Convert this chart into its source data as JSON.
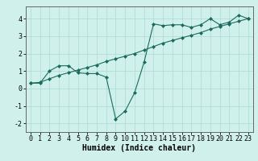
{
  "line1_x": [
    0,
    1,
    2,
    3,
    4,
    5,
    6,
    7,
    8,
    9,
    10,
    11,
    12,
    13,
    14,
    15,
    16,
    17,
    18,
    19,
    20,
    21,
    22,
    23
  ],
  "line1_y": [
    0.3,
    0.35,
    0.55,
    0.75,
    0.9,
    1.05,
    1.2,
    1.35,
    1.55,
    1.7,
    1.85,
    2.0,
    2.2,
    2.4,
    2.6,
    2.75,
    2.9,
    3.05,
    3.2,
    3.4,
    3.55,
    3.7,
    3.85,
    4.0
  ],
  "line2_x": [
    0,
    1,
    2,
    3,
    4,
    5,
    6,
    7,
    8,
    9,
    10,
    11,
    12,
    13,
    14,
    15,
    16,
    17,
    18,
    19,
    20,
    21,
    22,
    23
  ],
  "line2_y": [
    0.3,
    0.3,
    1.0,
    1.3,
    1.3,
    0.9,
    0.85,
    0.85,
    0.65,
    -1.75,
    -1.3,
    -0.25,
    1.5,
    3.7,
    3.6,
    3.65,
    3.65,
    3.5,
    3.65,
    4.0,
    3.65,
    3.8,
    4.2,
    4.0
  ],
  "color": "#1a6b5e",
  "bg_color": "#d0f0ec",
  "grid_color": "#b0ddd8",
  "xlabel": "Humidex (Indice chaleur)",
  "ylim": [
    -2.5,
    4.7
  ],
  "xlim": [
    -0.5,
    23.5
  ],
  "yticks": [
    -2,
    -1,
    0,
    1,
    2,
    3,
    4
  ],
  "xticks": [
    0,
    1,
    2,
    3,
    4,
    5,
    6,
    7,
    8,
    9,
    10,
    11,
    12,
    13,
    14,
    15,
    16,
    17,
    18,
    19,
    20,
    21,
    22,
    23
  ],
  "xlabel_fontsize": 7,
  "tick_fontsize": 6,
  "marker": "D",
  "marker_size": 2.0,
  "linewidth": 0.8
}
